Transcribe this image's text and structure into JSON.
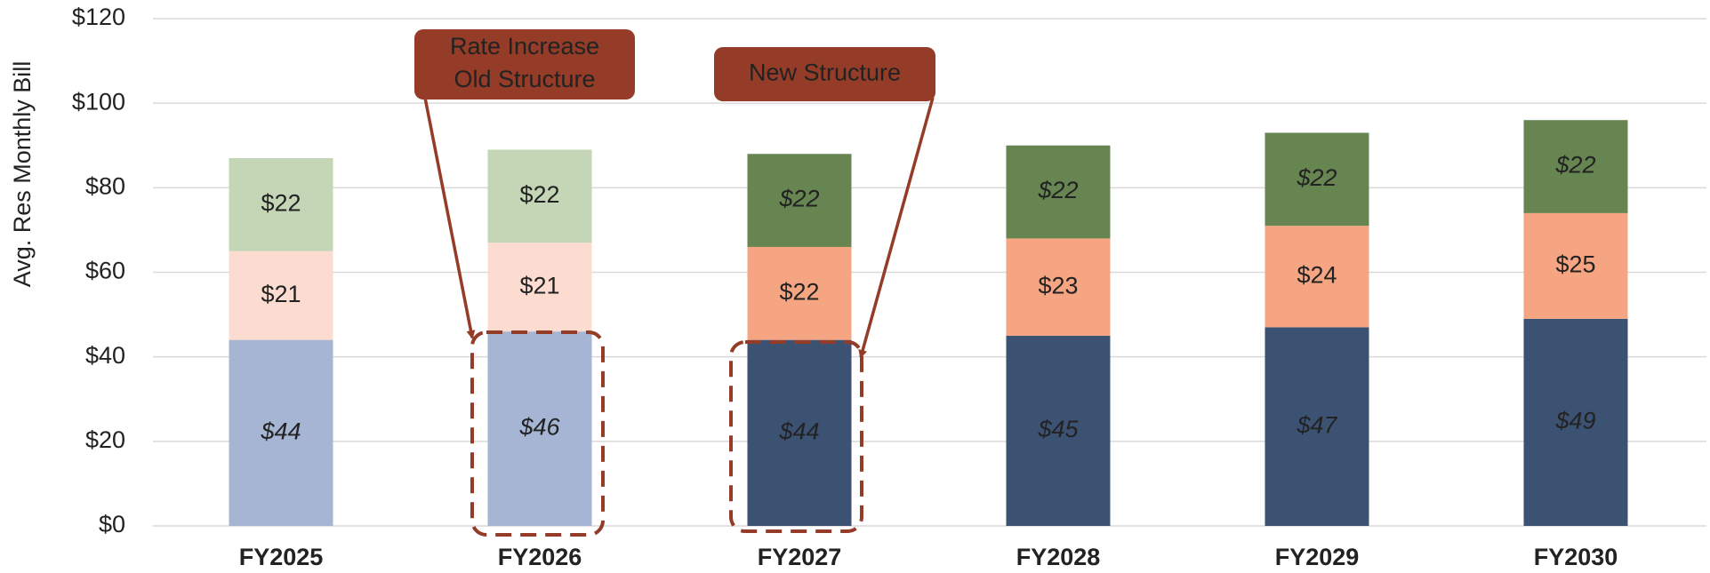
{
  "chart_data": {
    "type": "stacked_bar",
    "ylabel": "Avg. Res Monthly Bill",
    "categories": [
      "FY2025",
      "FY2026",
      "FY2027",
      "FY2028",
      "FY2029",
      "FY2030"
    ],
    "series": [
      {
        "colors": [
          "#a5b5d3",
          "#a5b5d3",
          "#3b5273",
          "#3b5273",
          "#3b5273",
          "#3b5273"
        ],
        "values": [
          44,
          46,
          44,
          45,
          47,
          49
        ],
        "value_labels": [
          "$44",
          "$46",
          "$44",
          "$45",
          "$47",
          "$49"
        ]
      },
      {
        "colors": [
          "#fcdcd0",
          "#fcdcd0",
          "#f6a583",
          "#f6a583",
          "#f6a583",
          "#f6a583"
        ],
        "values": [
          21,
          21,
          22,
          23,
          24,
          25
        ],
        "value_labels": [
          "$21",
          "$21",
          "$22",
          "$23",
          "$24",
          "$25"
        ]
      },
      {
        "colors": [
          "#c4d6b6",
          "#c4d6b6",
          "#668551",
          "#668551",
          "#668551",
          "#668551"
        ],
        "values": [
          22,
          22,
          22,
          22,
          22,
          22
        ],
        "value_labels": [
          "$22",
          "$22",
          "$22",
          "$22",
          "$22",
          "$22"
        ]
      }
    ],
    "ylim": [
      0,
      120
    ],
    "yticks": [
      {
        "value": 0,
        "label": "$0"
      },
      {
        "value": 20,
        "label": "$20"
      },
      {
        "value": 40,
        "label": "$40"
      },
      {
        "value": 60,
        "label": "$60"
      },
      {
        "value": 80,
        "label": "$80"
      },
      {
        "value": 100,
        "label": "$100"
      },
      {
        "value": 120,
        "label": "$120"
      }
    ],
    "grid": true,
    "annotations": [
      {
        "lines": [
          "Rate Increase",
          "Old Structure"
        ],
        "color": "#943c27"
      },
      {
        "lines": [
          "New Structure"
        ],
        "color": "#943c27"
      }
    ]
  }
}
